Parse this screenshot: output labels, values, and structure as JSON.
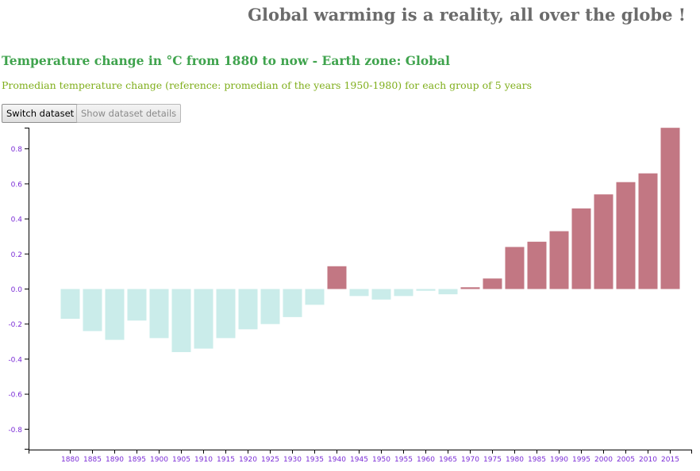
{
  "header": {
    "title": "Global warming is a reality, all over the globe !",
    "subtitle": "Temperature change in °C from 1880 to now - Earth zone: Global",
    "description": "Promedian temperature change (reference: promedian of the years 1950-1980) for each group of 5 years"
  },
  "toolbar": {
    "switch_label": "Switch dataset",
    "details_label": "Show dataset details"
  },
  "colors": {
    "title": "#6b6b6b",
    "subtitle": "#3fa34d",
    "description": "#7fae1b",
    "axis_labels": "#7a2bd6",
    "positive_bar": "#c27783",
    "negative_bar": "#caecea"
  },
  "chart_data": {
    "type": "bar",
    "categories": [
      "1880",
      "1885",
      "1890",
      "1895",
      "1900",
      "1905",
      "1910",
      "1915",
      "1920",
      "1925",
      "1930",
      "1935",
      "1940",
      "1945",
      "1950",
      "1955",
      "1960",
      "1965",
      "1970",
      "1975",
      "1980",
      "1985",
      "1990",
      "1995",
      "2000",
      "2005",
      "2010",
      "2015"
    ],
    "values": [
      -0.17,
      -0.24,
      -0.29,
      -0.18,
      -0.28,
      -0.36,
      -0.34,
      -0.28,
      -0.23,
      -0.2,
      -0.16,
      -0.09,
      0.13,
      -0.04,
      -0.06,
      -0.04,
      -0.01,
      -0.03,
      0.01,
      0.06,
      0.24,
      0.27,
      0.33,
      0.46,
      0.54,
      0.61,
      0.66,
      0.92
    ],
    "ylim": [
      -0.92,
      0.92
    ],
    "yticks": [
      -0.8,
      -0.6,
      -0.4,
      -0.2,
      0.0,
      0.2,
      0.4,
      0.6,
      0.8
    ],
    "ytick_labels": [
      "-0.8",
      "-0.6",
      "-0.4",
      "-0.2",
      "0.0",
      "0.2",
      "0.4",
      "0.6",
      "0.8"
    ],
    "xlabel": "",
    "ylabel": "",
    "grid": false,
    "legend": "none"
  }
}
